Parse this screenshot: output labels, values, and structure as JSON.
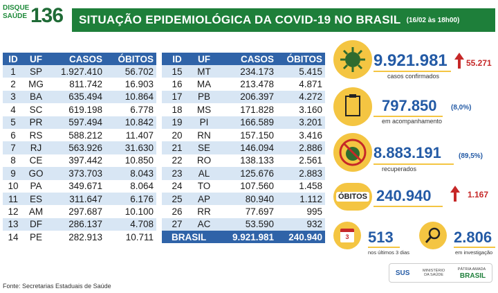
{
  "header": {
    "logo_line1": "DISQUE",
    "logo_line2": "SAÚDE",
    "logo_number": "136",
    "title": "SITUAÇÃO EPIDEMIOLÓGICA DA COVID-19 NO BRASIL",
    "subtitle": "(16/02 às 18h00)"
  },
  "table": {
    "headers": [
      "ID",
      "UF",
      "CASOS",
      "ÓBITOS"
    ],
    "left_rows": [
      [
        "1",
        "SP",
        "1.927.410",
        "56.702"
      ],
      [
        "2",
        "MG",
        "811.742",
        "16.903"
      ],
      [
        "3",
        "BA",
        "635.494",
        "10.864"
      ],
      [
        "4",
        "SC",
        "619.198",
        "6.778"
      ],
      [
        "5",
        "PR",
        "597.494",
        "10.842"
      ],
      [
        "6",
        "RS",
        "588.212",
        "11.407"
      ],
      [
        "7",
        "RJ",
        "563.926",
        "31.630"
      ],
      [
        "8",
        "CE",
        "397.442",
        "10.850"
      ],
      [
        "9",
        "GO",
        "373.703",
        "8.043"
      ],
      [
        "10",
        "PA",
        "349.671",
        "8.064"
      ],
      [
        "11",
        "ES",
        "311.647",
        "6.176"
      ],
      [
        "12",
        "AM",
        "297.687",
        "10.100"
      ],
      [
        "13",
        "DF",
        "286.137",
        "4.708"
      ],
      [
        "14",
        "PE",
        "282.913",
        "10.711"
      ]
    ],
    "right_rows": [
      [
        "15",
        "MT",
        "234.173",
        "5.415"
      ],
      [
        "16",
        "MA",
        "213.478",
        "4.871"
      ],
      [
        "17",
        "PB",
        "206.397",
        "4.272"
      ],
      [
        "18",
        "MS",
        "171.828",
        "3.160"
      ],
      [
        "19",
        "PI",
        "166.589",
        "3.201"
      ],
      [
        "20",
        "RN",
        "157.150",
        "3.416"
      ],
      [
        "21",
        "SE",
        "146.094",
        "2.886"
      ],
      [
        "22",
        "RO",
        "138.133",
        "2.561"
      ],
      [
        "23",
        "AL",
        "125.676",
        "2.883"
      ],
      [
        "24",
        "TO",
        "107.560",
        "1.458"
      ],
      [
        "25",
        "AP",
        "80.940",
        "1.112"
      ],
      [
        "26",
        "RR",
        "77.697",
        "995"
      ],
      [
        "27",
        "AC",
        "53.590",
        "932"
      ]
    ],
    "total": {
      "label": "BRASIL",
      "cases": "9.921.981",
      "deaths": "240.940"
    }
  },
  "stats": {
    "confirmed": {
      "value": "9.921.981",
      "increase": "55.271",
      "label": "casos confirmados"
    },
    "monitoring": {
      "value": "797.850",
      "pct": "(8,0%)",
      "label": "em acompanhamento"
    },
    "recovered": {
      "value": "8.883.191",
      "pct": "(89,5%)",
      "label": "recuperados"
    },
    "deaths": {
      "badge": "ÓBITOS",
      "value": "240.940",
      "increase": "1.167"
    },
    "last3": {
      "value": "513",
      "label": "nos últimos 3 dias",
      "cal": "3"
    },
    "investigation": {
      "value": "2.806",
      "label": "em investigação"
    }
  },
  "footer": {
    "source": "Fonte: Secretarias Estaduais de Saúde"
  },
  "gov": {
    "sus": "SUS",
    "ministry": "MINISTÉRIO DA SAÚDE",
    "motto": "PÁTRIA AMADA",
    "country": "BRASIL"
  },
  "colors": {
    "green": "#1e7f3a",
    "blue": "#2f63a8",
    "yellow": "#f4c542",
    "red": "#c62828"
  }
}
